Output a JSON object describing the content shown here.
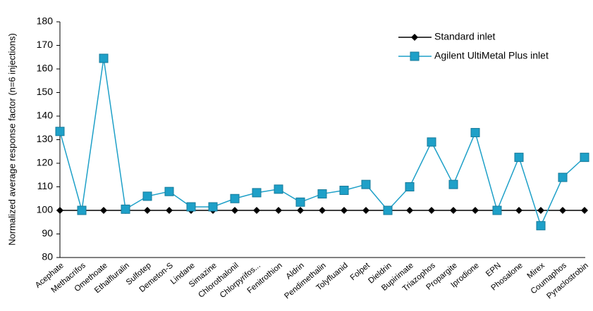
{
  "chart_data": {
    "type": "line",
    "y_label": "Normalized average response factor (n=6 injections)",
    "categories": [
      "Acephate",
      "Methacrifos",
      "Omethoate",
      "Ethalfluralin",
      "Sulfotep",
      "Demeton-S",
      "Lindane",
      "Simazine",
      "Chlorothalonil",
      "Chlorpyrifos...",
      "Fenitrothion",
      "Aldrin",
      "Pendimethalin",
      "Tolyfluanid",
      "Folpet",
      "Dieldrin",
      "Bupirimate",
      "Triazophos",
      "Propargite",
      "Iprodione",
      "EPN",
      "Phosalone",
      "Mirex",
      "Coumaphos",
      "Pyraclostrobin"
    ],
    "series": [
      {
        "name": "Standard inlet",
        "color": "#000000",
        "marker": "diamond",
        "values": [
          100,
          100,
          100,
          100,
          100,
          100,
          100,
          100,
          100,
          100,
          100,
          100,
          100,
          100,
          100,
          100,
          100,
          100,
          100,
          100,
          100,
          100,
          100,
          100,
          100
        ]
      },
      {
        "name": "Agilent UltiMetal Plus inlet",
        "color": "#1ea0c8",
        "marker": "square",
        "values": [
          133.5,
          100,
          164.5,
          100.5,
          106,
          108,
          101.5,
          101.5,
          105,
          107.5,
          109,
          103.5,
          107,
          108.5,
          111,
          100,
          110,
          129,
          111,
          133,
          100,
          122.5,
          93.5,
          114,
          122.5
        ]
      }
    ],
    "ylim": [
      80,
      180
    ],
    "yticks": [
      80,
      90,
      100,
      110,
      120,
      130,
      140,
      150,
      160,
      170,
      180
    ],
    "grid": false,
    "legend": "upper right"
  }
}
